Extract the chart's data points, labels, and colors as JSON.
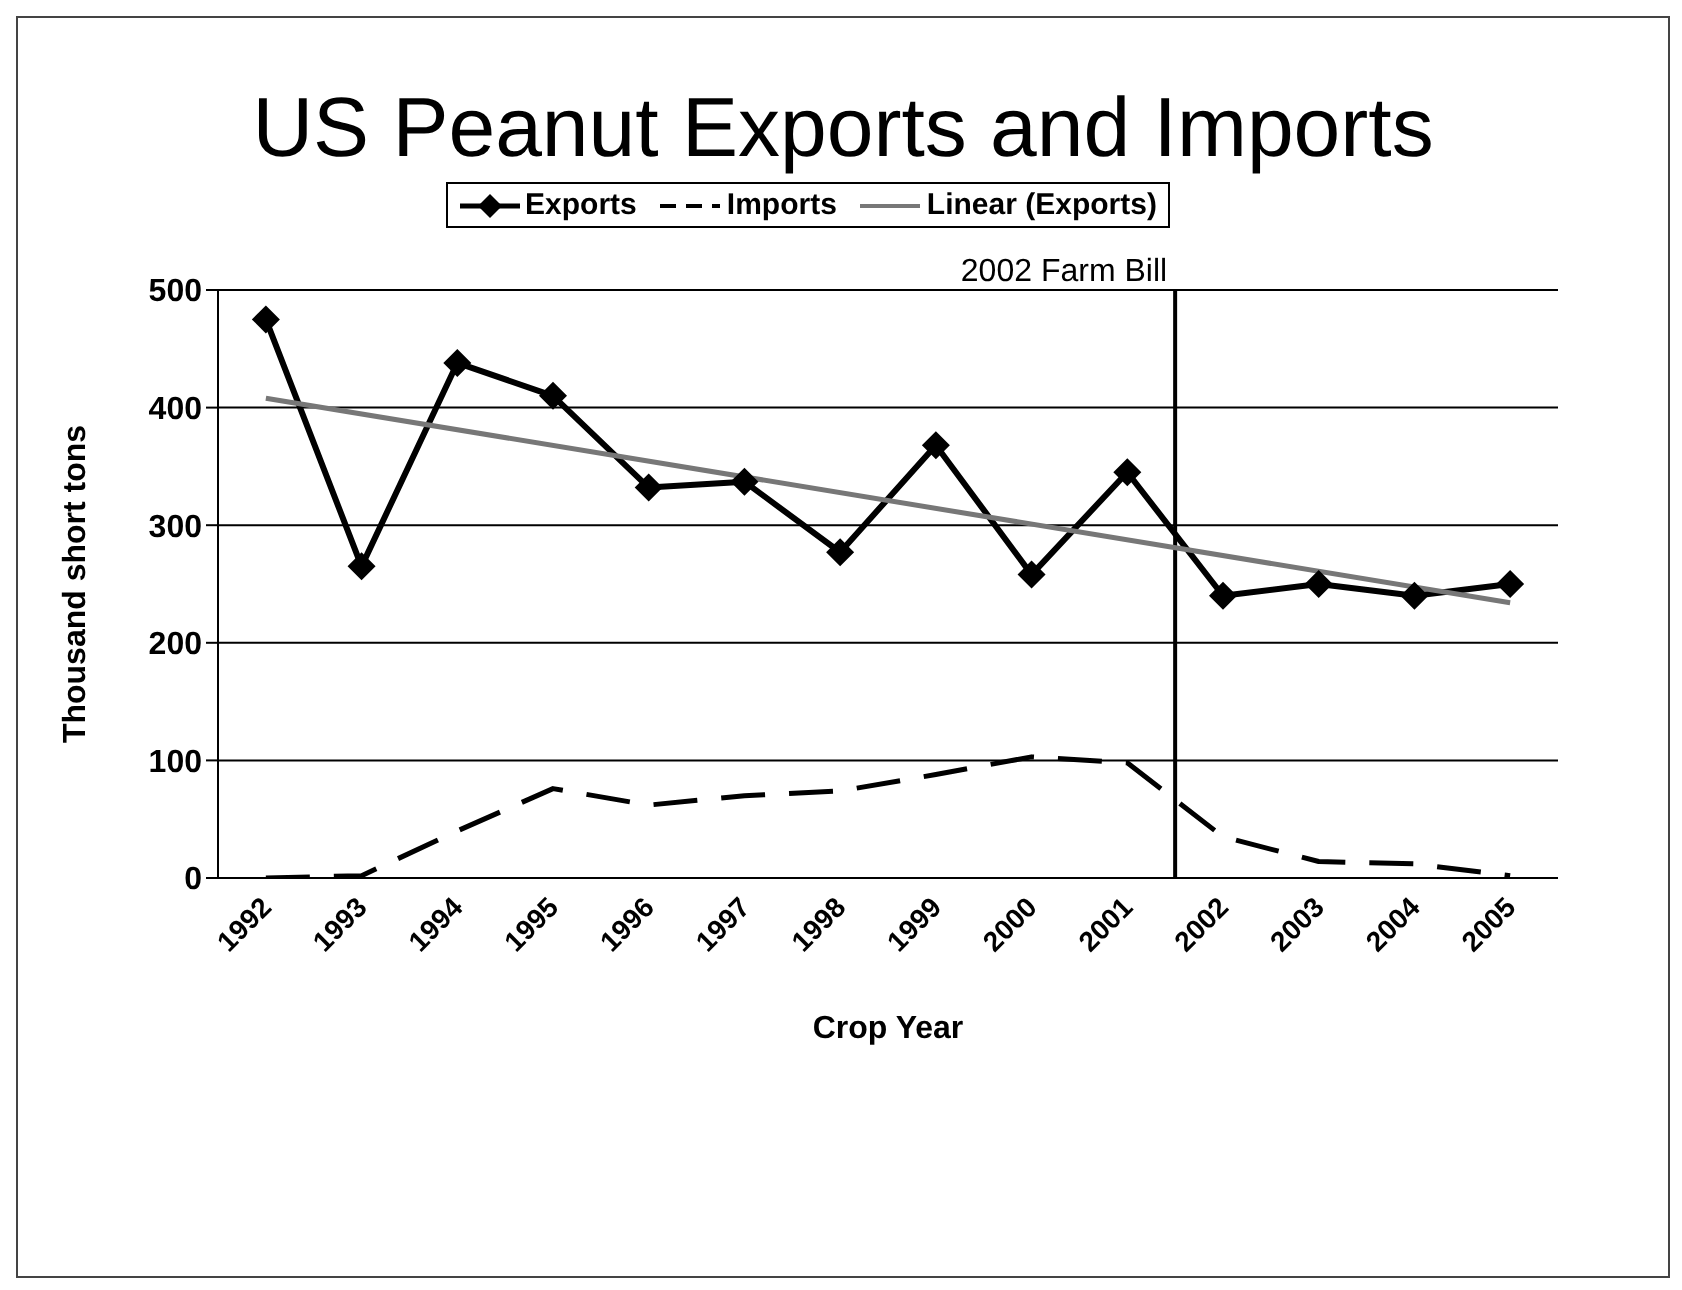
{
  "chart_data": {
    "type": "line",
    "title": "US Peanut Exports and Imports",
    "xlabel": "Crop Year",
    "ylabel": "Thousand short tons",
    "x": [
      1992,
      1993,
      1994,
      1995,
      1996,
      1997,
      1998,
      1999,
      2000,
      2001,
      2002,
      2003,
      2004,
      2005
    ],
    "xlim": [
      1991.5,
      2005.5
    ],
    "xticks": [
      1992,
      1993,
      1994,
      1995,
      1996,
      1997,
      1998,
      1999,
      2000,
      2001,
      2002,
      2003,
      2004,
      2005
    ],
    "ylim": [
      0,
      500
    ],
    "yticks": [
      0,
      100,
      200,
      300,
      400,
      500
    ],
    "grid": "y",
    "legend": "top",
    "series": [
      {
        "name": "Exports",
        "color": "#000000",
        "marker": "diamond",
        "line_style": "solid",
        "values": [
          475,
          265,
          438,
          410,
          332,
          337,
          277,
          368,
          258,
          345,
          240,
          250,
          240,
          250
        ]
      },
      {
        "name": "Imports",
        "color": "#000000",
        "marker": "none",
        "line_style": "dashed",
        "values": [
          0,
          2,
          40,
          76,
          62,
          70,
          74,
          88,
          103,
          98,
          35,
          14,
          12,
          2
        ]
      },
      {
        "name": "Linear (Exports)",
        "color": "#777777",
        "marker": "none",
        "line_style": "solid",
        "x": [
          1992,
          2005
        ],
        "values": [
          408,
          234
        ]
      }
    ],
    "ref_lines": [
      {
        "axis": "x",
        "value": 2001.5,
        "label": "2002 Farm Bill",
        "color": "#000000"
      }
    ]
  }
}
